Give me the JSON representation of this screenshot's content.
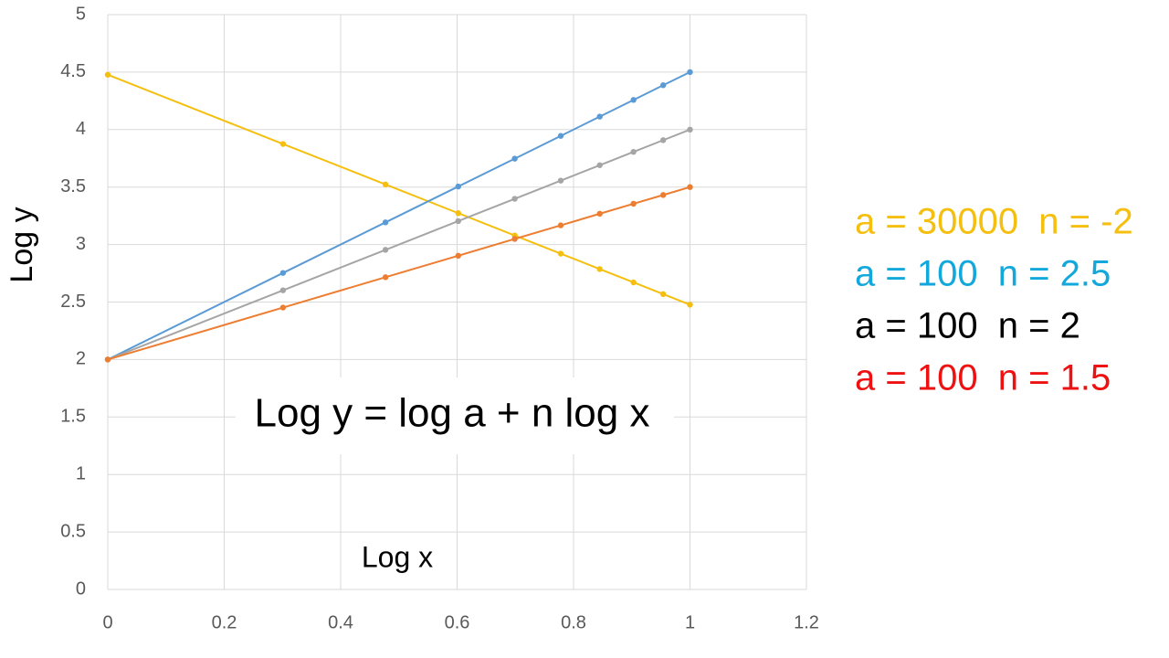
{
  "chart_data": {
    "type": "line",
    "x_label": "Log x",
    "y_label": "Log y",
    "annotation": "Log y = log a + n log x",
    "x": [
      0,
      0.301,
      0.477,
      0.602,
      0.699,
      0.778,
      0.845,
      0.903,
      0.954,
      1
    ],
    "series": [
      {
        "name": "a = 30000  n = -2",
        "color": "#f5bf0f",
        "label_color": "#f5bf0f",
        "values": [
          4.477,
          3.875,
          3.523,
          3.273,
          3.079,
          2.921,
          2.787,
          2.671,
          2.569,
          2.477
        ]
      },
      {
        "name": "a = 100  n = 2.5",
        "color": "#5b9bd5",
        "label_color": "#13a8dc",
        "values": [
          2,
          2.753,
          3.193,
          3.505,
          3.747,
          3.945,
          4.113,
          4.258,
          4.386,
          4.5
        ]
      },
      {
        "name": "a = 100  n = 2",
        "color": "#a5a5a5",
        "label_color": "#000000",
        "values": [
          2,
          2.602,
          2.954,
          3.204,
          3.398,
          3.556,
          3.69,
          3.806,
          3.908,
          4
        ]
      },
      {
        "name": "a = 100  n = 1.5",
        "color": "#ed7d31",
        "label_color": "#ee1111",
        "values": [
          2,
          2.452,
          2.716,
          2.903,
          3.049,
          3.167,
          3.268,
          3.355,
          3.431,
          3.5
        ]
      }
    ],
    "xlim": [
      0,
      1.2
    ],
    "xticks": [
      0,
      0.2,
      0.4,
      0.6,
      0.8,
      1,
      1.2
    ],
    "ylim": [
      0,
      5
    ],
    "yticks": [
      0,
      0.5,
      1,
      1.5,
      2,
      2.5,
      3,
      3.5,
      4,
      4.5,
      5
    ],
    "grid": true
  }
}
